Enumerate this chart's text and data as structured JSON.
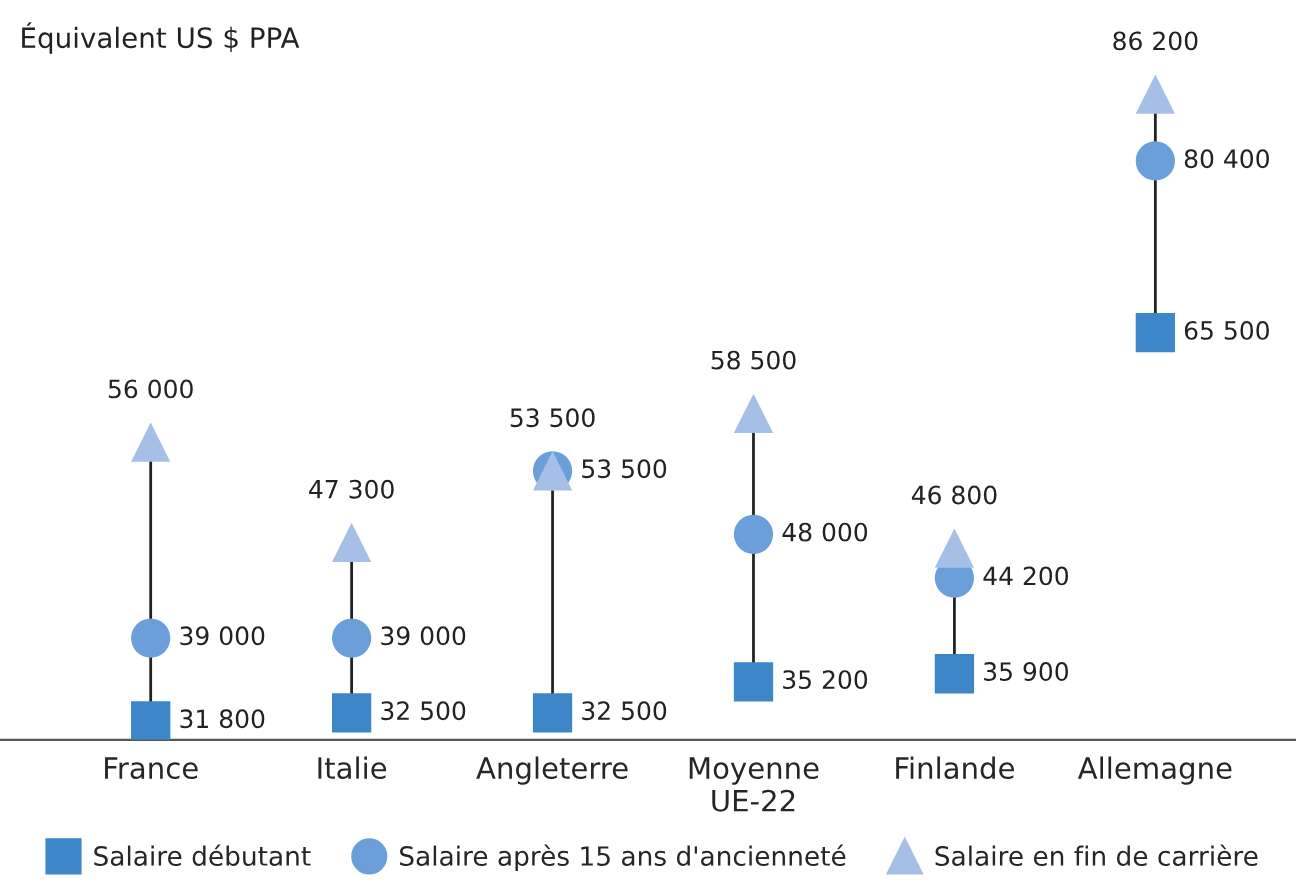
{
  "chart_data": {
    "type": "scatter",
    "ylabel": "Équivalent US $ PPA",
    "categories": [
      "France",
      "Italie",
      "Angleterre",
      "Moyenne\nUE-22",
      "Finlande",
      "Allemagne"
    ],
    "series": [
      {
        "name": "Salaire débutant",
        "color": "#3d87c9",
        "marker": "square",
        "values": [
          31800,
          32500,
          32500,
          35200,
          35900,
          65500
        ],
        "value_labels": [
          "31 800",
          "32 500",
          "32 500",
          "35 200",
          "35 900",
          "65 500"
        ]
      },
      {
        "name": "Salaire après 15 ans d'ancienneté",
        "color": "#6b9fd9",
        "marker": "circle",
        "values": [
          39000,
          39000,
          53500,
          48000,
          44200,
          80400
        ],
        "value_labels": [
          "39 000",
          "39 000",
          "53 500",
          "48 000",
          "44 200",
          "80 400"
        ]
      },
      {
        "name": "Salaire en fin de carrière",
        "color": "#a6bfe6",
        "marker": "triangle",
        "values": [
          56000,
          47300,
          53500,
          58500,
          46800,
          86200
        ],
        "value_labels": [
          "56 000",
          "47 300",
          "53 500",
          "58 500",
          "46 800",
          "86 200"
        ]
      }
    ],
    "grid": false,
    "legend": "bottom",
    "tick_labels": "x"
  }
}
